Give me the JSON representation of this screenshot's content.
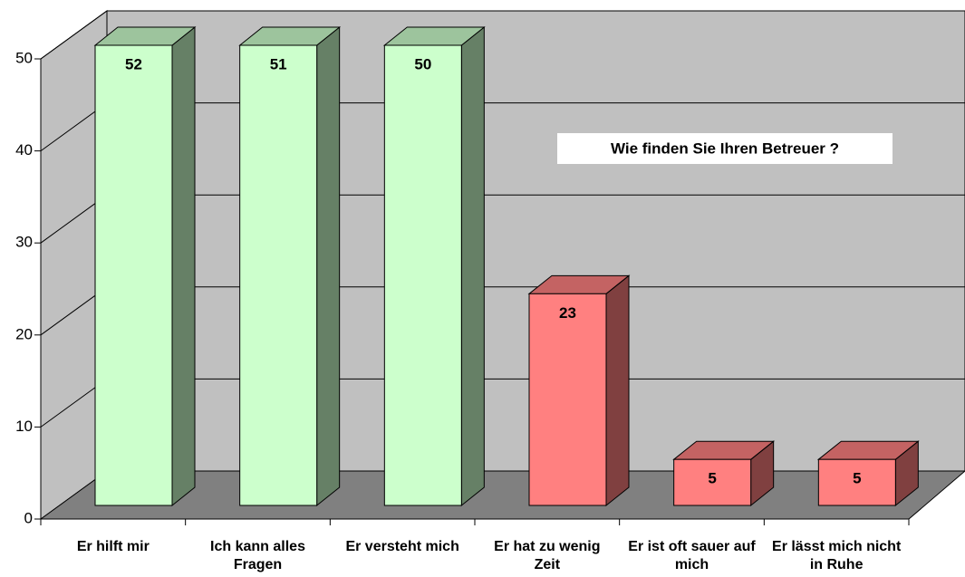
{
  "chart_data": {
    "type": "bar3d",
    "title": "Wie finden Sie Ihren Betreuer  ?",
    "categories": [
      "Er hilft mir",
      "Ich kann alles Fragen",
      "Er versteht mich",
      "Er hat zu wenig Zeit",
      "Er ist oft sauer auf mich",
      "Er lässt mich nicht in Ruhe"
    ],
    "values": [
      52,
      51,
      50,
      23,
      5,
      5
    ],
    "colors": [
      "#ccffcc",
      "#ccffcc",
      "#ccffcc",
      "#ff8080",
      "#ff8080",
      "#ff8080"
    ],
    "ylim": [
      0,
      50
    ],
    "yticks": [
      0,
      10,
      20,
      30,
      40,
      50
    ],
    "grid": true
  }
}
